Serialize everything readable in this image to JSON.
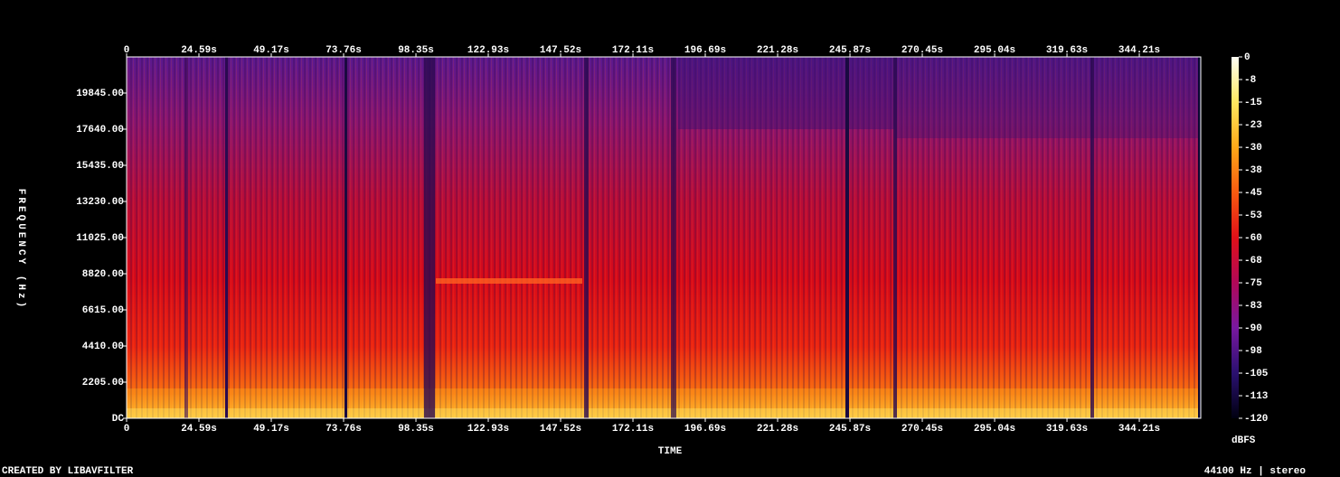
{
  "chart_data": {
    "type": "spectrogram",
    "x_label": "TIME",
    "y_label": "FREQUENCY (Hz)",
    "colorbar_label": "dBFS",
    "footer_left": "CREATED BY LIBAVFILTER",
    "footer_right": "44100 Hz | stereo",
    "xlim": [
      0,
      365.1
    ],
    "xticks": [
      0,
      {
        "value": 24.59,
        "label": "24.59s"
      },
      {
        "value": 49.17,
        "label": "49.17s"
      },
      {
        "value": 73.76,
        "label": "73.76s"
      },
      {
        "value": 98.35,
        "label": "98.35s"
      },
      {
        "value": 122.93,
        "label": "122.93s"
      },
      {
        "value": 147.52,
        "label": "147.52s"
      },
      {
        "value": 172.11,
        "label": "172.11s"
      },
      {
        "value": 196.69,
        "label": "196.69s"
      },
      {
        "value": 221.28,
        "label": "221.28s"
      },
      {
        "value": 245.87,
        "label": "245.87s"
      },
      {
        "value": 270.45,
        "label": "270.45s"
      },
      {
        "value": 295.04,
        "label": "295.04s"
      },
      {
        "value": 319.63,
        "label": "319.63s"
      },
      {
        "value": 344.21,
        "label": "344.21s"
      }
    ],
    "ylim": [
      0,
      22050
    ],
    "yticks": [
      {
        "value": 0,
        "label": "DC"
      },
      {
        "value": 2205,
        "label": "2205.00"
      },
      {
        "value": 4410,
        "label": "4410.00"
      },
      {
        "value": 6615,
        "label": "6615.00"
      },
      {
        "value": 8820,
        "label": "8820.00"
      },
      {
        "value": 11025,
        "label": "11025.00"
      },
      {
        "value": 13230,
        "label": "13230.00"
      },
      {
        "value": 15435,
        "label": "15435.00"
      },
      {
        "value": 17640,
        "label": "17640.00"
      },
      {
        "value": 19845,
        "label": "19845.00"
      }
    ],
    "zlim": [
      -120,
      0
    ],
    "zticks": [
      0,
      {
        "value": -7.5,
        "label": "-8"
      },
      {
        "value": -15,
        "label": "-15"
      },
      {
        "value": -22.5,
        "label": "-23"
      },
      {
        "value": -30,
        "label": "-30"
      },
      {
        "value": -37.5,
        "label": "-38"
      },
      {
        "value": -45,
        "label": "-45"
      },
      {
        "value": -52.5,
        "label": "-53"
      },
      {
        "value": -60,
        "label": "-60"
      },
      {
        "value": -67.5,
        "label": "-68"
      },
      {
        "value": -75,
        "label": "-75"
      },
      {
        "value": -82.5,
        "label": "-83"
      },
      {
        "value": -90,
        "label": "-90"
      },
      {
        "value": -97.5,
        "label": "-98"
      },
      {
        "value": -105,
        "label": "-105"
      },
      {
        "value": -112.5,
        "label": "-113"
      },
      {
        "value": -120,
        "label": "-120"
      }
    ],
    "colormap": [
      "#fffff4",
      "#ffe860",
      "#ffa818",
      "#f85a10",
      "#e01018",
      "#b00858",
      "#7818a0",
      "#2a1070",
      "#000010"
    ]
  }
}
